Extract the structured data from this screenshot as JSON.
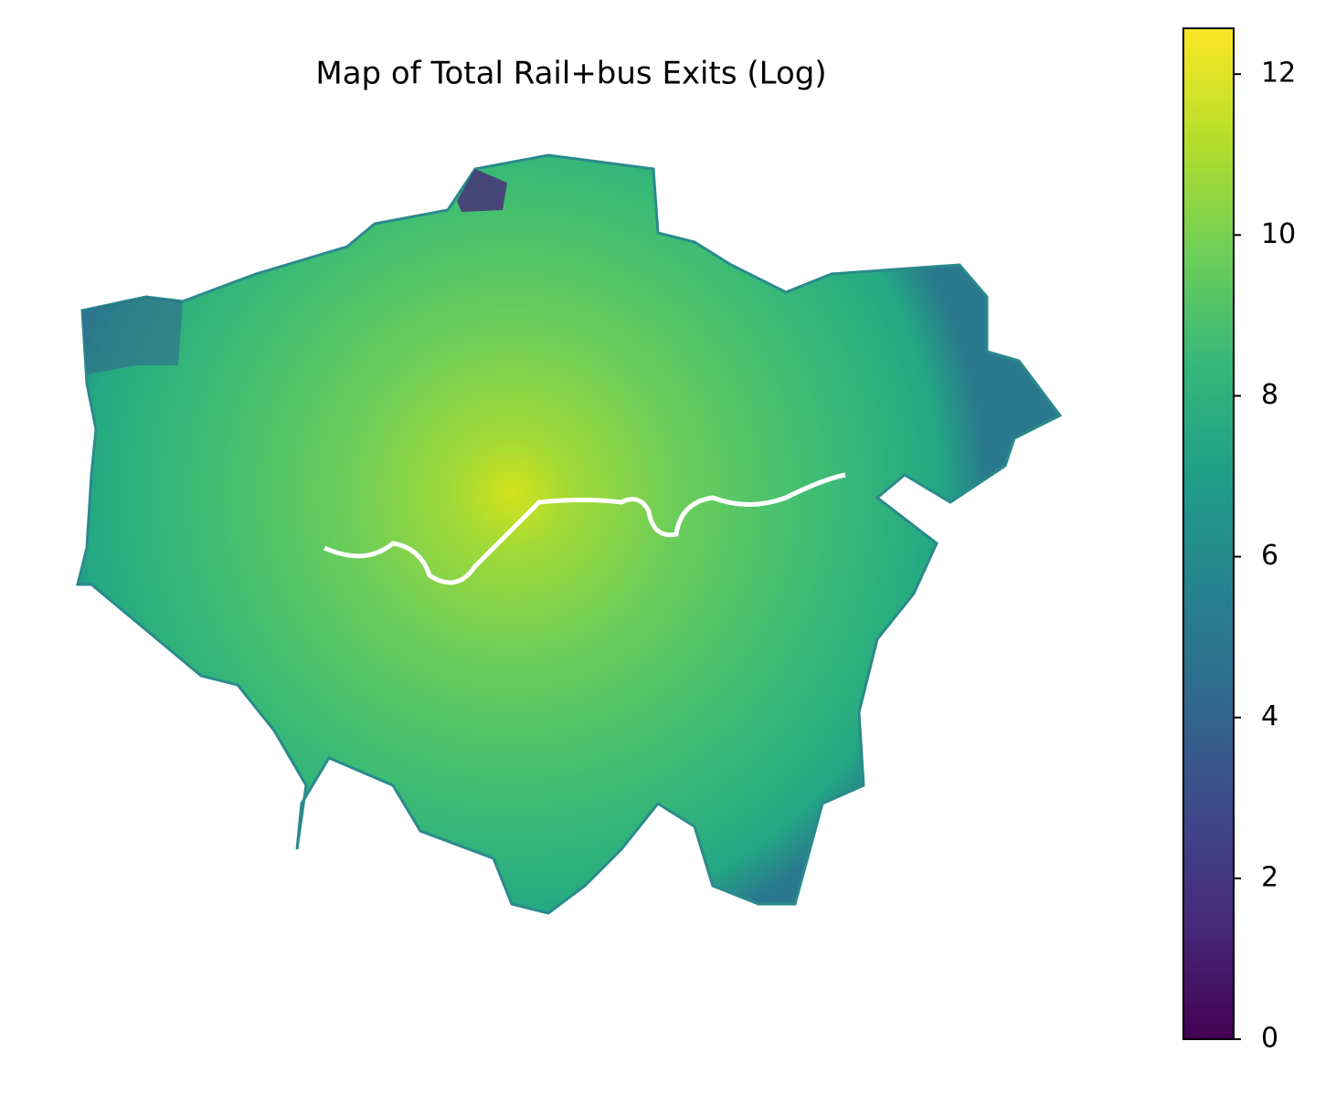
{
  "map": {
    "title": "Map of Total Rail+bus Exits (Log)",
    "colorbar": {
      "lim": [
        0,
        12.57
      ],
      "ticks": [
        0,
        2,
        4,
        6,
        8,
        10,
        12
      ],
      "colors": [
        "#440154",
        "#482878",
        "#3e4989",
        "#31688e",
        "#26828e",
        "#1f9e89",
        "#35b779",
        "#6ece58",
        "#b5de2b",
        "#fde725"
      ]
    }
  }
}
